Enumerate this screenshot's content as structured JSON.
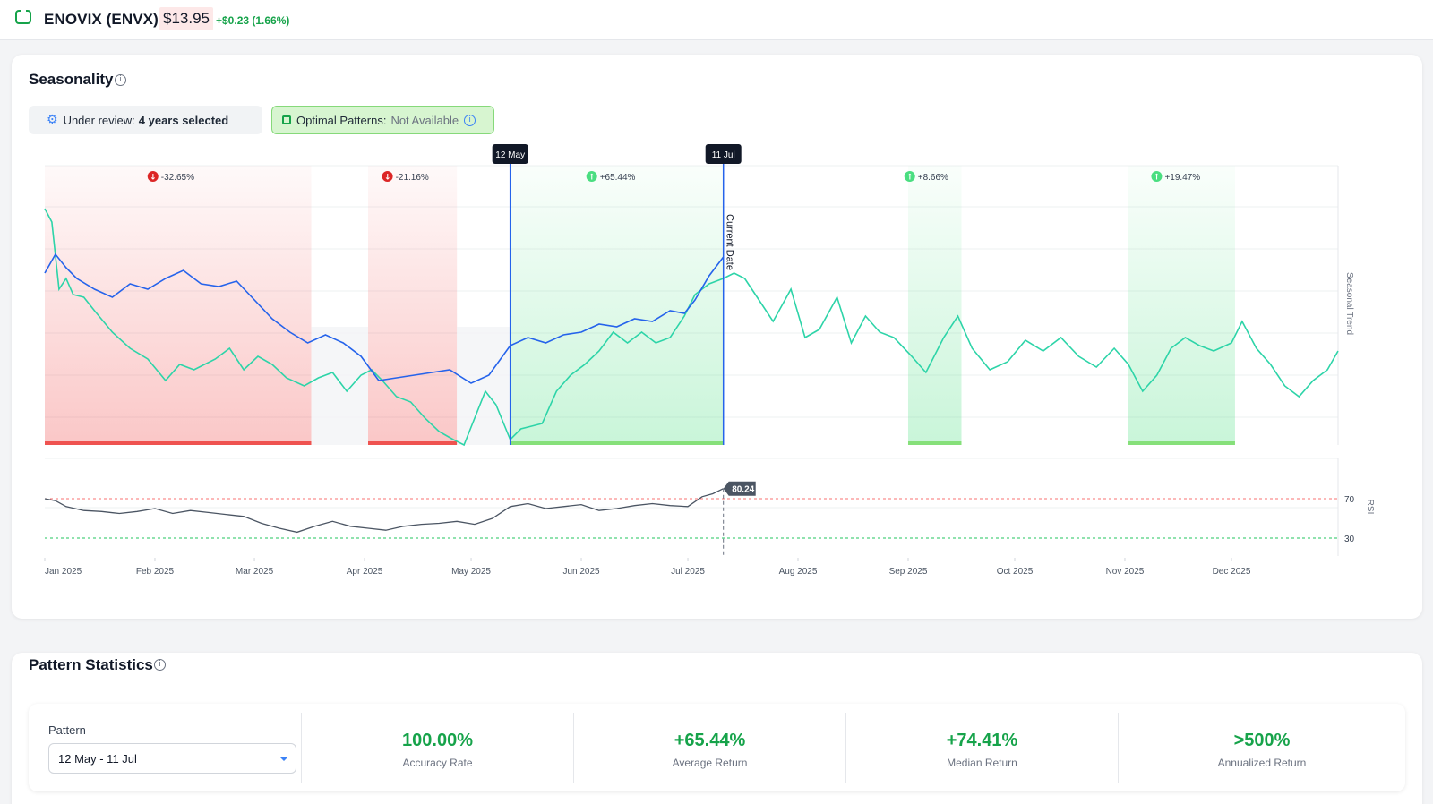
{
  "header": {
    "ticker": "ENOVIX (ENVX)",
    "price": "$13.95",
    "change": "+$0.23 (1.66%)"
  },
  "seasonality": {
    "title": "Seasonality",
    "review_label": "Under review:",
    "review_value": "4 years selected",
    "optimal_label": "Optimal Patterns:",
    "optimal_value": "Not Available"
  },
  "stats": {
    "title": "Pattern Statistics",
    "pattern_label": "Pattern",
    "pattern_value": "12 May - 11 Jul",
    "items": [
      {
        "value": "100.00%",
        "label": "Accuracy Rate"
      },
      {
        "value": "+65.44%",
        "label": "Average Return"
      },
      {
        "value": "+74.41%",
        "label": "Median Return"
      },
      {
        "value": ">500%",
        "label": "Annualized Return"
      }
    ]
  },
  "colors": {
    "up": "#16a34a",
    "down": "#dc2626",
    "seasonal_line": "#2dd4a8",
    "current_line": "#2563eb",
    "rsi_line": "#4b5563"
  },
  "chart_data": {
    "type": "line",
    "x_axis": {
      "range": [
        "2025-01-01",
        "2025-12-31"
      ],
      "ticks": [
        "Jan 2025",
        "Feb 2025",
        "Mar 2025",
        "Apr 2025",
        "May 2025",
        "Jun 2025",
        "Jul 2025",
        "Aug 2025",
        "Sep 2025",
        "Oct 2025",
        "Nov 2025",
        "Dec 2025"
      ]
    },
    "ylabel": "Seasonal Trend",
    "markers": {
      "start": "12 May",
      "end": "11 Jul",
      "current_label": "Current Date"
    },
    "patterns": [
      {
        "label": "-32.65%",
        "direction": "down",
        "start": "2025-01-01",
        "end": "2025-03-17"
      },
      {
        "label": "-21.16%",
        "direction": "down",
        "start": "2025-04-02",
        "end": "2025-04-27"
      },
      {
        "label": "+65.44%",
        "direction": "up",
        "start": "2025-05-12",
        "end": "2025-07-11"
      },
      {
        "label": "+8.66%",
        "direction": "up",
        "start": "2025-09-01",
        "end": "2025-09-16"
      },
      {
        "label": "+19.47%",
        "direction": "up",
        "start": "2025-11-02",
        "end": "2025-12-02"
      }
    ],
    "series": [
      {
        "type": "seasonal",
        "points": [
          [
            "2025-01-01",
            88
          ],
          [
            "2025-01-03",
            83
          ],
          [
            "2025-01-05",
            58
          ],
          [
            "2025-01-07",
            62
          ],
          [
            "2025-01-09",
            56
          ],
          [
            "2025-01-12",
            55
          ],
          [
            "2025-01-15",
            50
          ],
          [
            "2025-01-20",
            42
          ],
          [
            "2025-01-25",
            36
          ],
          [
            "2025-01-30",
            32
          ],
          [
            "2025-02-04",
            24
          ],
          [
            "2025-02-08",
            30
          ],
          [
            "2025-02-12",
            28
          ],
          [
            "2025-02-18",
            32
          ],
          [
            "2025-02-22",
            36
          ],
          [
            "2025-02-26",
            28
          ],
          [
            "2025-03-02",
            33
          ],
          [
            "2025-03-06",
            30
          ],
          [
            "2025-03-10",
            25
          ],
          [
            "2025-03-15",
            22
          ],
          [
            "2025-03-19",
            25
          ],
          [
            "2025-03-23",
            27
          ],
          [
            "2025-03-27",
            20
          ],
          [
            "2025-03-31",
            26
          ],
          [
            "2025-04-03",
            28
          ],
          [
            "2025-04-06",
            24
          ],
          [
            "2025-04-10",
            18
          ],
          [
            "2025-04-14",
            16
          ],
          [
            "2025-04-18",
            10
          ],
          [
            "2025-04-22",
            5
          ],
          [
            "2025-04-26",
            2
          ],
          [
            "2025-04-29",
            0
          ],
          [
            "2025-05-02",
            10
          ],
          [
            "2025-05-05",
            20
          ],
          [
            "2025-05-08",
            15
          ],
          [
            "2025-05-12",
            2
          ],
          [
            "2025-05-15",
            6
          ],
          [
            "2025-05-18",
            7
          ],
          [
            "2025-05-21",
            8
          ],
          [
            "2025-05-25",
            20
          ],
          [
            "2025-05-29",
            26
          ],
          [
            "2025-06-02",
            30
          ],
          [
            "2025-06-06",
            35
          ],
          [
            "2025-06-10",
            42
          ],
          [
            "2025-06-14",
            38
          ],
          [
            "2025-06-18",
            42
          ],
          [
            "2025-06-22",
            38
          ],
          [
            "2025-06-26",
            40
          ],
          [
            "2025-06-30",
            48
          ],
          [
            "2025-07-03",
            56
          ],
          [
            "2025-07-07",
            60
          ],
          [
            "2025-07-11",
            62
          ],
          [
            "2025-07-14",
            64
          ],
          [
            "2025-07-17",
            62
          ],
          [
            "2025-07-21",
            54
          ],
          [
            "2025-07-25",
            46
          ],
          [
            "2025-07-30",
            58
          ],
          [
            "2025-08-03",
            40
          ],
          [
            "2025-08-07",
            43
          ],
          [
            "2025-08-12",
            55
          ],
          [
            "2025-08-16",
            38
          ],
          [
            "2025-08-20",
            48
          ],
          [
            "2025-08-24",
            42
          ],
          [
            "2025-08-28",
            40
          ],
          [
            "2025-09-02",
            33
          ],
          [
            "2025-09-06",
            27
          ],
          [
            "2025-09-11",
            40
          ],
          [
            "2025-09-15",
            48
          ],
          [
            "2025-09-19",
            36
          ],
          [
            "2025-09-24",
            28
          ],
          [
            "2025-09-29",
            31
          ],
          [
            "2025-10-04",
            39
          ],
          [
            "2025-10-09",
            35
          ],
          [
            "2025-10-14",
            40
          ],
          [
            "2025-10-19",
            33
          ],
          [
            "2025-10-24",
            29
          ],
          [
            "2025-10-29",
            36
          ],
          [
            "2025-11-02",
            30
          ],
          [
            "2025-11-06",
            20
          ],
          [
            "2025-11-10",
            26
          ],
          [
            "2025-11-14",
            36
          ],
          [
            "2025-11-18",
            40
          ],
          [
            "2025-11-22",
            37
          ],
          [
            "2025-11-26",
            35
          ],
          [
            "2025-12-01",
            38
          ],
          [
            "2025-12-04",
            46
          ],
          [
            "2025-12-08",
            36
          ],
          [
            "2025-12-12",
            30
          ],
          [
            "2025-12-16",
            22
          ],
          [
            "2025-12-20",
            18
          ],
          [
            "2025-12-24",
            24
          ],
          [
            "2025-12-28",
            28
          ],
          [
            "2025-12-31",
            35
          ]
        ]
      },
      {
        "type": "current_year",
        "points": [
          [
            "2025-01-01",
            64
          ],
          [
            "2025-01-04",
            71
          ],
          [
            "2025-01-07",
            66
          ],
          [
            "2025-01-10",
            62
          ],
          [
            "2025-01-15",
            58
          ],
          [
            "2025-01-20",
            55
          ],
          [
            "2025-01-25",
            60
          ],
          [
            "2025-01-30",
            58
          ],
          [
            "2025-02-04",
            62
          ],
          [
            "2025-02-09",
            65
          ],
          [
            "2025-02-14",
            60
          ],
          [
            "2025-02-19",
            59
          ],
          [
            "2025-02-24",
            61
          ],
          [
            "2025-03-01",
            54
          ],
          [
            "2025-03-06",
            47
          ],
          [
            "2025-03-11",
            42
          ],
          [
            "2025-03-16",
            38
          ],
          [
            "2025-03-21",
            41
          ],
          [
            "2025-03-26",
            38
          ],
          [
            "2025-03-31",
            33
          ],
          [
            "2025-04-05",
            24
          ],
          [
            "2025-04-10",
            25
          ],
          [
            "2025-04-15",
            26
          ],
          [
            "2025-04-20",
            27
          ],
          [
            "2025-04-25",
            28
          ],
          [
            "2025-05-01",
            23
          ],
          [
            "2025-05-06",
            26
          ],
          [
            "2025-05-12",
            37
          ],
          [
            "2025-05-17",
            40
          ],
          [
            "2025-05-22",
            38
          ],
          [
            "2025-05-27",
            41
          ],
          [
            "2025-06-01",
            42
          ],
          [
            "2025-06-06",
            45
          ],
          [
            "2025-06-11",
            44
          ],
          [
            "2025-06-16",
            47
          ],
          [
            "2025-06-21",
            46
          ],
          [
            "2025-06-26",
            50
          ],
          [
            "2025-06-30",
            49
          ],
          [
            "2025-07-03",
            54
          ],
          [
            "2025-07-07",
            63
          ],
          [
            "2025-07-11",
            70
          ]
        ]
      },
      {
        "type": "rsi",
        "points": [
          [
            "2025-01-01",
            70
          ],
          [
            "2025-01-04",
            68
          ],
          [
            "2025-01-07",
            62
          ],
          [
            "2025-01-12",
            58
          ],
          [
            "2025-01-17",
            57
          ],
          [
            "2025-01-22",
            55
          ],
          [
            "2025-01-27",
            57
          ],
          [
            "2025-02-01",
            60
          ],
          [
            "2025-02-06",
            55
          ],
          [
            "2025-02-11",
            58
          ],
          [
            "2025-02-16",
            56
          ],
          [
            "2025-02-21",
            54
          ],
          [
            "2025-02-26",
            52
          ],
          [
            "2025-03-03",
            45
          ],
          [
            "2025-03-08",
            40
          ],
          [
            "2025-03-13",
            36
          ],
          [
            "2025-03-18",
            42
          ],
          [
            "2025-03-23",
            47
          ],
          [
            "2025-03-28",
            42
          ],
          [
            "2025-04-02",
            40
          ],
          [
            "2025-04-07",
            38
          ],
          [
            "2025-04-12",
            42
          ],
          [
            "2025-04-17",
            44
          ],
          [
            "2025-04-22",
            45
          ],
          [
            "2025-04-27",
            47
          ],
          [
            "2025-05-02",
            44
          ],
          [
            "2025-05-07",
            50
          ],
          [
            "2025-05-12",
            62
          ],
          [
            "2025-05-17",
            65
          ],
          [
            "2025-05-22",
            60
          ],
          [
            "2025-05-27",
            62
          ],
          [
            "2025-06-01",
            64
          ],
          [
            "2025-06-06",
            58
          ],
          [
            "2025-06-11",
            60
          ],
          [
            "2025-06-16",
            63
          ],
          [
            "2025-06-21",
            65
          ],
          [
            "2025-06-26",
            63
          ],
          [
            "2025-07-01",
            62
          ],
          [
            "2025-07-05",
            72
          ],
          [
            "2025-07-08",
            75
          ],
          [
            "2025-07-11",
            80.24
          ]
        ]
      }
    ],
    "rsi": {
      "label": "RSI",
      "latest": "80.24",
      "upper": 70,
      "lower": 30,
      "upper_label": "70",
      "lower_label": "30"
    }
  }
}
